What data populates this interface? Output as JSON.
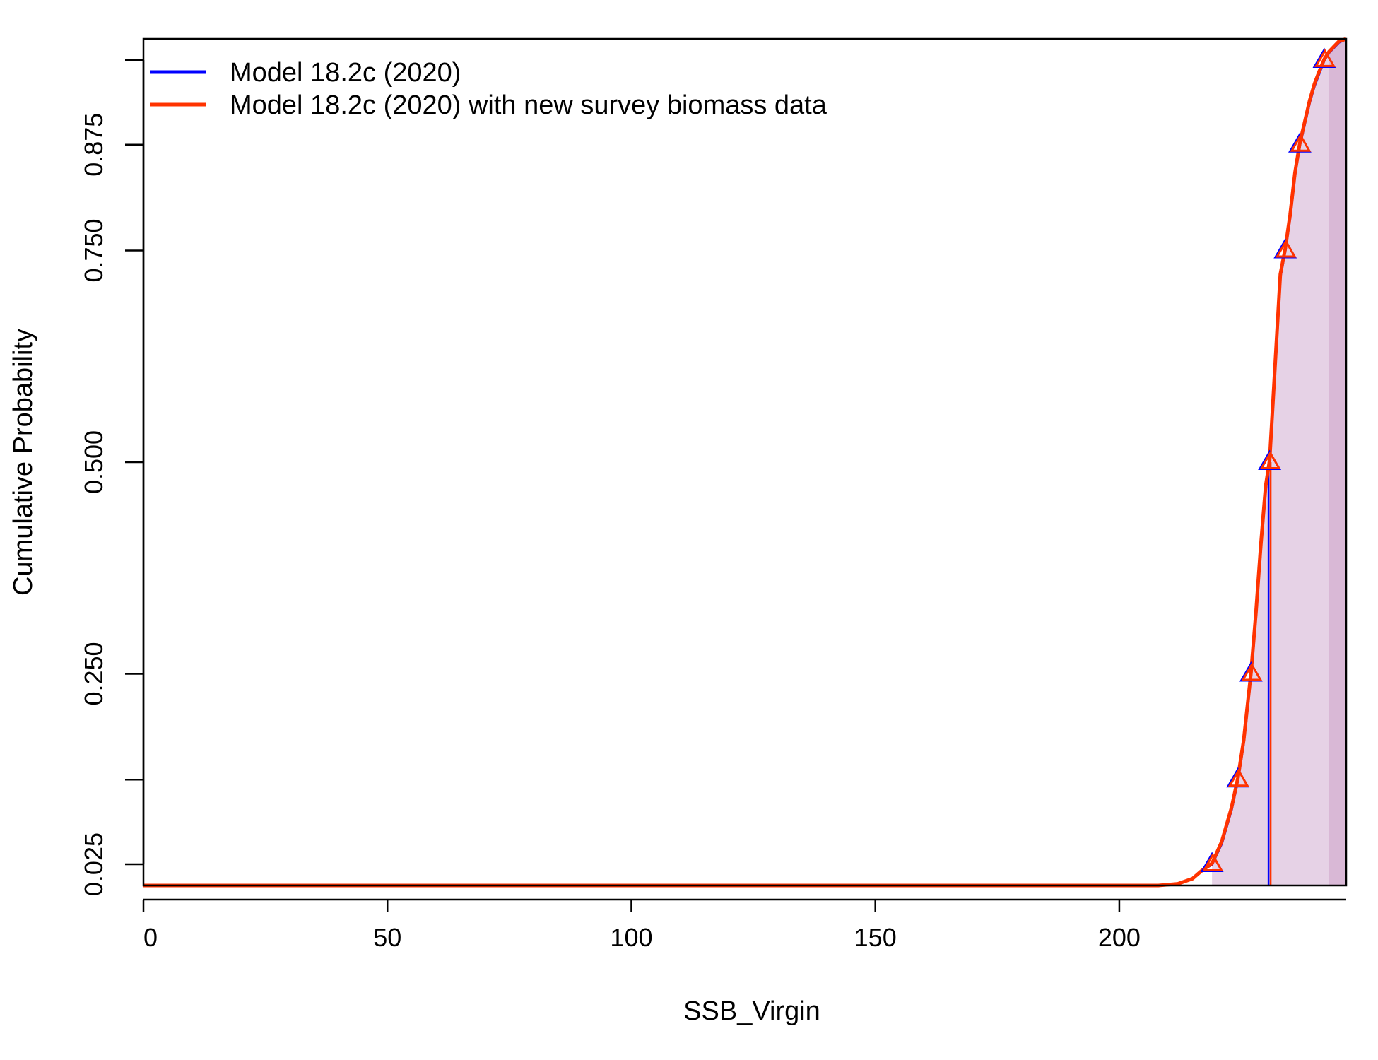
{
  "chart_data": {
    "type": "line",
    "xlabel": "SSB_Virgin",
    "ylabel": "Cumulative Probability",
    "xlim": [
      0,
      246.5
    ],
    "ylim": [
      0,
      1
    ],
    "x_ticks": [
      0,
      50,
      100,
      150,
      200
    ],
    "y_ticks": [
      0.025,
      0.125,
      0.25,
      0.5,
      0.75,
      0.875,
      0.975
    ],
    "y_tick_labels": [
      "0.025",
      "",
      "0.250",
      "0.500",
      "0.750",
      "0.875",
      ""
    ],
    "legend_position": "top-left",
    "grid": false,
    "series": [
      {
        "name": "Model 18.2c (2020)",
        "color": "#0000ff",
        "x": [
          0,
          208,
          212,
          215,
          217,
          219,
          221,
          223,
          224.3,
          225.5,
          227,
          228,
          229,
          230,
          230.8,
          231.5,
          232.3,
          233,
          234,
          235,
          236,
          237,
          238,
          239,
          240,
          241,
          242,
          243,
          244,
          245,
          246.5
        ],
        "y": [
          0,
          0,
          0.002,
          0.008,
          0.018,
          0.025,
          0.05,
          0.09,
          0.125,
          0.17,
          0.25,
          0.32,
          0.4,
          0.47,
          0.5,
          0.57,
          0.65,
          0.72,
          0.75,
          0.79,
          0.84,
          0.875,
          0.9,
          0.925,
          0.945,
          0.96,
          0.975,
          0.984,
          0.99,
          0.996,
          1.0
        ]
      },
      {
        "name": "Model 18.2c (2020) with new survey biomass data",
        "color": "#ff3300",
        "x": [
          0,
          208,
          212,
          215,
          217,
          219,
          221,
          223,
          224.3,
          225.5,
          227,
          228,
          229,
          230,
          230.8,
          231.5,
          232.3,
          233,
          234,
          235,
          236,
          237,
          238,
          239,
          240,
          241,
          242,
          243,
          244,
          245,
          246.5
        ],
        "y": [
          0,
          0,
          0.002,
          0.008,
          0.018,
          0.026,
          0.052,
          0.092,
          0.127,
          0.172,
          0.252,
          0.322,
          0.402,
          0.472,
          0.502,
          0.572,
          0.652,
          0.722,
          0.752,
          0.792,
          0.842,
          0.877,
          0.902,
          0.927,
          0.947,
          0.962,
          0.976,
          0.985,
          0.991,
          0.997,
          1.0
        ]
      }
    ],
    "quantile_markers": {
      "probabilities": [
        0.025,
        0.125,
        0.25,
        0.5,
        0.75,
        0.875,
        0.975
      ],
      "x": [
        219,
        224.3,
        227,
        230.8,
        234,
        237,
        242
      ]
    },
    "median_x": 230.8,
    "shaded_from_x": 219,
    "shade_color": "#e6d2e6",
    "upper_band_from_x": 243,
    "upper_band_color": "#d9b8d6"
  }
}
